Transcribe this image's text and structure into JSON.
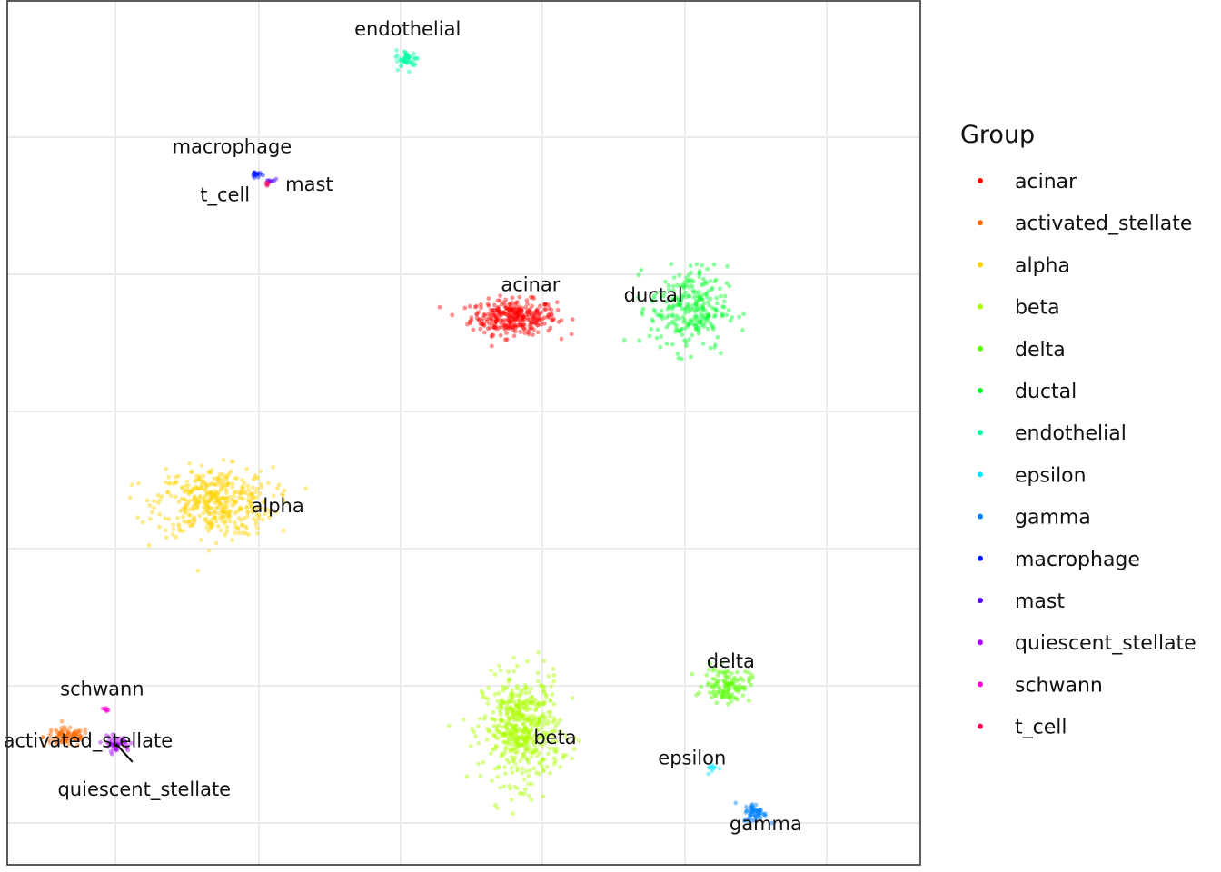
{
  "chart_data": {
    "type": "scatter",
    "title": "",
    "xlabel": "",
    "ylabel": "",
    "grid": true,
    "axis_ticks_shown": false,
    "legend": {
      "title": "Group",
      "placement": "right"
    },
    "series": [
      {
        "name": "acinar",
        "color": "#FF0000",
        "centroid": [
          0.42,
          -0.15
        ],
        "spread": [
          1.1,
          0.45
        ],
        "n": 320
      },
      {
        "name": "activated_stellate",
        "color": "#FF6A00",
        "centroid": [
          -12.3,
          -12.3
        ],
        "spread": [
          0.6,
          0.25
        ],
        "n": 90
      },
      {
        "name": "alpha",
        "color": "#FFD300",
        "centroid": [
          -8.1,
          -5.5
        ],
        "spread": [
          1.5,
          0.9
        ],
        "n": 420
      },
      {
        "name": "beta",
        "color": "#AAFF00",
        "centroid": [
          0.65,
          -12.1
        ],
        "spread": [
          1.0,
          1.4
        ],
        "n": 520
      },
      {
        "name": "delta",
        "color": "#55FF00",
        "centroid": [
          6.5,
          -10.8
        ],
        "spread": [
          0.6,
          0.45
        ],
        "n": 120
      },
      {
        "name": "ductal",
        "color": "#00FF2A",
        "centroid": [
          5.4,
          0.1
        ],
        "spread": [
          1.0,
          1.1
        ],
        "n": 260
      },
      {
        "name": "endothelial",
        "color": "#00FF9F",
        "centroid": [
          -2.6,
          7.3
        ],
        "spread": [
          0.3,
          0.25
        ],
        "n": 45
      },
      {
        "name": "epsilon",
        "color": "#00EAFF",
        "centroid": [
          6.1,
          -13.2
        ],
        "spread": [
          0.15,
          0.15
        ],
        "n": 10
      },
      {
        "name": "gamma",
        "color": "#0080FF",
        "centroid": [
          7.3,
          -14.5
        ],
        "spread": [
          0.3,
          0.25
        ],
        "n": 60
      },
      {
        "name": "macrophage",
        "color": "#0015FF",
        "centroid": [
          -6.9,
          4.0
        ],
        "spread": [
          0.12,
          0.1
        ],
        "n": 16
      },
      {
        "name": "mast",
        "color": "#5500FF",
        "centroid": [
          -6.5,
          3.8
        ],
        "spread": [
          0.12,
          0.08
        ],
        "n": 8
      },
      {
        "name": "quiescent_stellate",
        "color": "#AA00FF",
        "centroid": [
          -10.9,
          -12.5
        ],
        "spread": [
          0.35,
          0.2
        ],
        "n": 45
      },
      {
        "name": "schwann",
        "color": "#FF00D4",
        "centroid": [
          -11.2,
          -11.5
        ],
        "spread": [
          0.1,
          0.08
        ],
        "n": 8
      },
      {
        "name": "t_cell",
        "color": "#FF0060",
        "centroid": [
          -6.6,
          3.7
        ],
        "spread": [
          0.08,
          0.06
        ],
        "n": 6
      }
    ],
    "labels": [
      {
        "text": "endothelial",
        "x": -2.6,
        "y": 8.0
      },
      {
        "text": "macrophage",
        "x": -7.6,
        "y": 4.6
      },
      {
        "text": "mast",
        "x": -5.4,
        "y": 3.5
      },
      {
        "text": "t_cell",
        "x": -7.8,
        "y": 3.2
      },
      {
        "text": "acinar",
        "x": 0.9,
        "y": 0.6
      },
      {
        "text": "ductal",
        "x": 4.4,
        "y": 0.3
      },
      {
        "text": "alpha",
        "x": -6.3,
        "y": -5.8
      },
      {
        "text": "delta",
        "x": 6.6,
        "y": -10.3
      },
      {
        "text": "beta",
        "x": 1.6,
        "y": -12.5
      },
      {
        "text": "epsilon",
        "x": 5.5,
        "y": -13.1
      },
      {
        "text": "gamma",
        "x": 7.6,
        "y": -15.0
      },
      {
        "text": "schwann",
        "x": -11.3,
        "y": -11.1
      },
      {
        "text": "activated_stellate",
        "x": -11.7,
        "y": -12.6
      },
      {
        "text": "quiescent_stellate",
        "x": -10.1,
        "y": -14.0
      }
    ],
    "xlim": [
      -14,
      12
    ],
    "ylim": [
      -16,
      9
    ]
  }
}
